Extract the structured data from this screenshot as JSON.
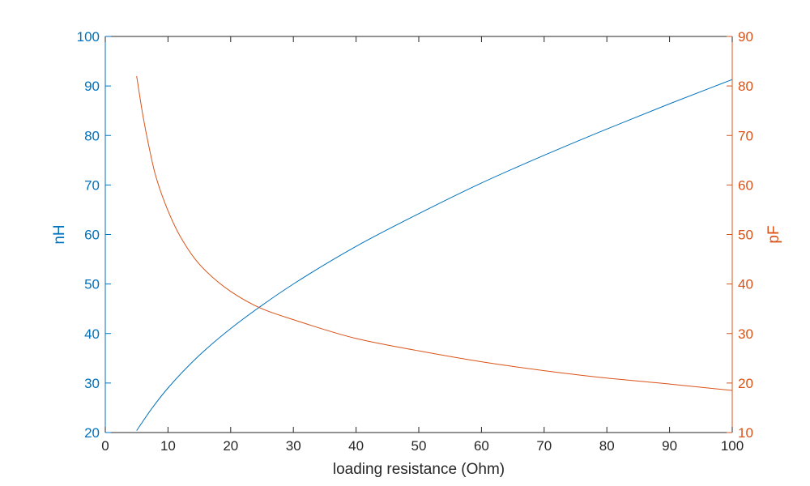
{
  "chart_data": {
    "type": "line",
    "title": "",
    "xlabel": "loading resistance (Ohm)",
    "ylabel_left": "nH",
    "ylabel_right": "pF",
    "xlim": [
      0,
      100
    ],
    "ylim_left": [
      20,
      100
    ],
    "ylim_right": [
      10,
      90
    ],
    "xticks": [
      0,
      10,
      20,
      30,
      40,
      50,
      60,
      70,
      80,
      90,
      100
    ],
    "yticks_left": [
      20,
      30,
      40,
      50,
      60,
      70,
      80,
      90,
      100
    ],
    "yticks_right": [
      10,
      20,
      30,
      40,
      50,
      60,
      70,
      80,
      90
    ],
    "grid": false,
    "legend": "none",
    "colors": {
      "left": "#0072BD",
      "right": "#D95319",
      "axis": "#262626"
    },
    "series": [
      {
        "axis": "left",
        "color": "#0072BD",
        "x": [
          5,
          7.5,
          10,
          15,
          20,
          25,
          30,
          40,
          50,
          60,
          70,
          80,
          90,
          100
        ],
        "y": [
          20.4,
          25,
          29,
          35.6,
          41,
          45.7,
          50,
          57.6,
          64.2,
          70.4,
          76,
          81.3,
          86.4,
          91.3
        ]
      },
      {
        "axis": "right",
        "color": "#D95319",
        "x": [
          5,
          6,
          7,
          8,
          10,
          12,
          15,
          20,
          25,
          30,
          40,
          50,
          60,
          70,
          80,
          90,
          100
        ],
        "y": [
          82,
          74,
          67.5,
          62,
          54.8,
          49.5,
          44,
          38.5,
          35,
          32.8,
          29,
          26.5,
          24.3,
          22.5,
          21,
          19.8,
          18.5
        ]
      }
    ]
  }
}
